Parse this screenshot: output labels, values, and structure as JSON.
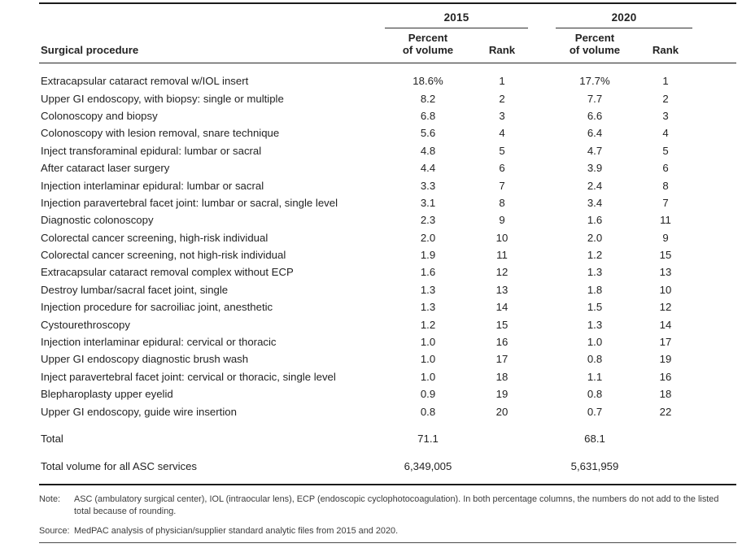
{
  "table": {
    "header": {
      "procedure_col": "Surgical procedure",
      "year_2015": "2015",
      "year_2020": "2020",
      "percent_line1": "Percent",
      "percent_line2": "of volume",
      "rank": "Rank"
    },
    "rows": [
      {
        "procedure": "Extracapsular cataract removal w/IOL insert",
        "pct_2015": "18.6%",
        "rank_2015": "1",
        "pct_2020": "17.7%",
        "rank_2020": "1"
      },
      {
        "procedure": "Upper GI endoscopy, with biopsy: single or multiple",
        "pct_2015": "8.2",
        "rank_2015": "2",
        "pct_2020": "7.7",
        "rank_2020": "2"
      },
      {
        "procedure": "Colonoscopy and biopsy",
        "pct_2015": "6.8",
        "rank_2015": "3",
        "pct_2020": "6.6",
        "rank_2020": "3"
      },
      {
        "procedure": "Colonoscopy with lesion removal, snare technique",
        "pct_2015": "5.6",
        "rank_2015": "4",
        "pct_2020": "6.4",
        "rank_2020": "4"
      },
      {
        "procedure": "Inject transforaminal epidural: lumbar or sacral",
        "pct_2015": "4.8",
        "rank_2015": "5",
        "pct_2020": "4.7",
        "rank_2020": "5"
      },
      {
        "procedure": "After cataract laser surgery",
        "pct_2015": "4.4",
        "rank_2015": "6",
        "pct_2020": "3.9",
        "rank_2020": "6"
      },
      {
        "procedure": "Injection interlaminar epidural: lumbar or sacral",
        "pct_2015": "3.3",
        "rank_2015": "7",
        "pct_2020": "2.4",
        "rank_2020": "8"
      },
      {
        "procedure": "Injection paravertebral facet joint: lumbar or sacral, single level",
        "pct_2015": "3.1",
        "rank_2015": "8",
        "pct_2020": "3.4",
        "rank_2020": "7"
      },
      {
        "procedure": "Diagnostic colonoscopy",
        "pct_2015": "2.3",
        "rank_2015": "9",
        "pct_2020": "1.6",
        "rank_2020": "11"
      },
      {
        "procedure": "Colorectal cancer screening, high-risk individual",
        "pct_2015": "2.0",
        "rank_2015": "10",
        "pct_2020": "2.0",
        "rank_2020": "9"
      },
      {
        "procedure": "Colorectal cancer screening, not high-risk individual",
        "pct_2015": "1.9",
        "rank_2015": "11",
        "pct_2020": "1.2",
        "rank_2020": "15"
      },
      {
        "procedure": "Extracapsular cataract removal complex without ECP",
        "pct_2015": "1.6",
        "rank_2015": "12",
        "pct_2020": "1.3",
        "rank_2020": "13"
      },
      {
        "procedure": "Destroy lumbar/sacral facet joint, single",
        "pct_2015": "1.3",
        "rank_2015": "13",
        "pct_2020": "1.8",
        "rank_2020": "10"
      },
      {
        "procedure": "Injection procedure for sacroiliac joint, anesthetic",
        "pct_2015": "1.3",
        "rank_2015": "14",
        "pct_2020": "1.5",
        "rank_2020": "12"
      },
      {
        "procedure": "Cystourethroscopy",
        "pct_2015": "1.2",
        "rank_2015": "15",
        "pct_2020": "1.3",
        "rank_2020": "14"
      },
      {
        "procedure": "Injection interlaminar epidural: cervical or thoracic",
        "pct_2015": "1.0",
        "rank_2015": "16",
        "pct_2020": "1.0",
        "rank_2020": "17"
      },
      {
        "procedure": "Upper GI endoscopy diagnostic brush wash",
        "pct_2015": "1.0",
        "rank_2015": "17",
        "pct_2020": "0.8",
        "rank_2020": "19"
      },
      {
        "procedure": "Inject paravertebral facet joint: cervical or thoracic, single level",
        "pct_2015": "1.0",
        "rank_2015": "18",
        "pct_2020": "1.1",
        "rank_2020": "16"
      },
      {
        "procedure": "Blepharoplasty upper eyelid",
        "pct_2015": "0.9",
        "rank_2015": "19",
        "pct_2020": "0.8",
        "rank_2020": "18"
      },
      {
        "procedure": "Upper GI endoscopy, guide wire insertion",
        "pct_2015": "0.8",
        "rank_2015": "20",
        "pct_2020": "0.7",
        "rank_2020": "22"
      }
    ],
    "total_row": {
      "label": "Total",
      "pct_2015": "71.1",
      "pct_2020": "68.1"
    },
    "total_volume_row": {
      "label": "Total volume for all ASC services",
      "val_2015": "6,349,005",
      "val_2020": "5,631,959"
    }
  },
  "note": {
    "label": "Note:",
    "text": "ASC (ambulatory surgical center), IOL (intraocular lens), ECP (endoscopic cyclophotocoagulation). In both percentage columns, the numbers do not add to the listed total because of rounding."
  },
  "source": {
    "label": "Source:",
    "text": "MedPAC analysis of physician/supplier standard analytic files from 2015 and 2020."
  },
  "colors": {
    "text": "#232323",
    "rule_heavy": "#1b1b1b",
    "rule_light": "#303030",
    "note_text": "#3c3c3c",
    "background": "#ffffff"
  }
}
